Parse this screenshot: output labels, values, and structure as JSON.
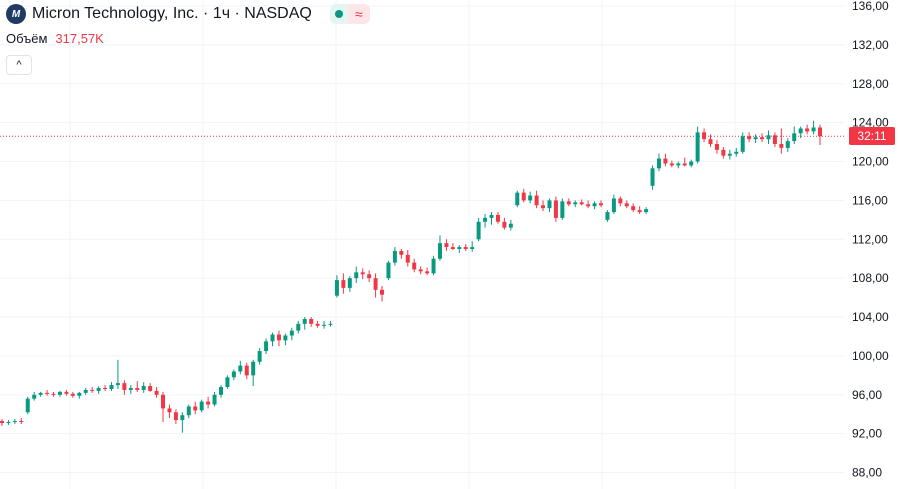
{
  "header": {
    "title": "Micron Technology, Inc. · 1ч · NASDAQ",
    "logo_text": "M"
  },
  "volume": {
    "label": "Объём",
    "value": "317,57K"
  },
  "price_badge": "32:11",
  "colors": {
    "up": "#089981",
    "down": "#f23645",
    "grid": "#f0f3fa",
    "axis_text": "#131722"
  },
  "icons": [
    "logo-icon",
    "status-dot-icon",
    "wave-icon",
    "chevron-up-icon"
  ],
  "chart_data": {
    "type": "candlestick",
    "ylim": [
      86,
      137
    ],
    "y_ticks": [
      "136,00",
      "132,00",
      "128,00",
      "124,00",
      "120,00",
      "116,00",
      "112,00",
      "108,00",
      "104,00",
      "100,00",
      "96,00",
      "92,00",
      "88,00"
    ],
    "last_price": 122.6,
    "candles": [
      [
        93.3,
        93.5,
        92.8,
        93.1
      ],
      [
        93.1,
        93.4,
        92.9,
        93.2
      ],
      [
        93.2,
        93.5,
        93.0,
        93.3
      ],
      [
        93.3,
        93.6,
        93.0,
        93.2
      ],
      [
        94.2,
        95.8,
        94.0,
        95.6
      ],
      [
        95.6,
        96.3,
        95.4,
        96.0
      ],
      [
        96.0,
        96.3,
        95.8,
        96.2
      ],
      [
        96.2,
        96.5,
        95.9,
        96.1
      ],
      [
        96.1,
        96.3,
        95.8,
        96.0
      ],
      [
        96.0,
        96.4,
        95.8,
        96.3
      ],
      [
        96.3,
        96.5,
        95.9,
        96.1
      ],
      [
        96.1,
        96.3,
        95.7,
        95.9
      ],
      [
        95.9,
        96.3,
        95.6,
        96.2
      ],
      [
        96.2,
        96.7,
        96.0,
        96.5
      ],
      [
        96.5,
        96.8,
        96.2,
        96.4
      ],
      [
        96.4,
        96.9,
        96.1,
        96.7
      ],
      [
        96.7,
        97.0,
        96.4,
        96.6
      ],
      [
        96.6,
        97.3,
        96.4,
        97.0
      ],
      [
        97.0,
        99.6,
        96.6,
        97.2
      ],
      [
        97.2,
        97.5,
        96.0,
        96.5
      ],
      [
        96.5,
        97.0,
        96.1,
        96.7
      ],
      [
        96.7,
        97.4,
        96.3,
        96.5
      ],
      [
        96.5,
        97.3,
        96.2,
        96.9
      ],
      [
        96.9,
        97.2,
        96.3,
        96.4
      ],
      [
        96.4,
        96.8,
        95.7,
        96.0
      ],
      [
        96.0,
        96.3,
        93.2,
        94.6
      ],
      [
        94.6,
        95.0,
        93.6,
        94.2
      ],
      [
        94.2,
        94.5,
        93.0,
        93.4
      ],
      [
        93.4,
        94.2,
        92.1,
        93.9
      ],
      [
        93.9,
        95.0,
        93.6,
        94.8
      ],
      [
        94.8,
        95.3,
        94.0,
        94.4
      ],
      [
        94.4,
        95.5,
        94.2,
        95.3
      ],
      [
        95.3,
        95.8,
        94.6,
        95.0
      ],
      [
        95.0,
        96.3,
        94.8,
        96.0
      ],
      [
        96.0,
        97.0,
        95.7,
        96.8
      ],
      [
        96.8,
        98.0,
        96.6,
        97.8
      ],
      [
        97.8,
        98.6,
        97.5,
        98.4
      ],
      [
        98.4,
        99.5,
        98.1,
        99.0
      ],
      [
        99.0,
        99.3,
        97.6,
        98.0
      ],
      [
        98.0,
        99.6,
        96.9,
        99.4
      ],
      [
        99.4,
        100.8,
        99.1,
        100.5
      ],
      [
        100.5,
        101.8,
        100.2,
        101.5
      ],
      [
        101.5,
        102.4,
        101.0,
        102.2
      ],
      [
        102.2,
        102.6,
        101.0,
        101.6
      ],
      [
        101.6,
        102.3,
        101.1,
        102.1
      ],
      [
        102.1,
        102.9,
        101.6,
        102.6
      ],
      [
        102.6,
        103.6,
        102.3,
        103.3
      ],
      [
        103.3,
        104.0,
        102.7,
        103.8
      ],
      [
        103.8,
        104.0,
        103.0,
        103.3
      ],
      [
        103.3,
        103.6,
        102.9,
        103.1
      ],
      [
        103.1,
        103.6,
        102.8,
        103.2
      ],
      [
        103.2,
        103.6,
        103.0,
        103.3
      ],
      [
        106.2,
        108.3,
        106.0,
        107.8
      ],
      [
        107.8,
        108.5,
        106.4,
        107.0
      ],
      [
        107.0,
        108.2,
        106.6,
        108.0
      ],
      [
        108.0,
        109.2,
        107.5,
        108.6
      ],
      [
        108.6,
        109.0,
        107.9,
        108.4
      ],
      [
        108.4,
        108.8,
        107.6,
        108.0
      ],
      [
        108.0,
        108.5,
        106.0,
        106.8
      ],
      [
        106.8,
        107.2,
        105.6,
        106.3
      ],
      [
        108.0,
        109.8,
        107.8,
        109.6
      ],
      [
        109.6,
        111.2,
        109.3,
        110.8
      ],
      [
        110.8,
        111.0,
        110.0,
        110.4
      ],
      [
        110.4,
        110.9,
        109.2,
        109.6
      ],
      [
        109.6,
        110.0,
        108.6,
        108.9
      ],
      [
        108.9,
        109.2,
        108.4,
        108.7
      ],
      [
        108.7,
        109.1,
        108.3,
        108.5
      ],
      [
        108.5,
        110.3,
        108.3,
        110.0
      ],
      [
        110.0,
        112.4,
        109.8,
        111.6
      ],
      [
        111.6,
        112.0,
        110.8,
        111.2
      ],
      [
        111.2,
        111.6,
        110.9,
        111.0
      ],
      [
        111.0,
        111.4,
        110.6,
        111.2
      ],
      [
        111.2,
        111.5,
        110.8,
        111.0
      ],
      [
        111.0,
        111.8,
        110.7,
        111.2
      ],
      [
        112.0,
        114.2,
        111.8,
        113.8
      ],
      [
        113.8,
        114.6,
        113.2,
        114.2
      ],
      [
        114.2,
        114.8,
        113.5,
        114.5
      ],
      [
        114.5,
        114.8,
        113.6,
        113.8
      ],
      [
        113.8,
        114.2,
        113.0,
        113.2
      ],
      [
        113.2,
        114.0,
        112.9,
        113.6
      ],
      [
        115.5,
        117.0,
        115.3,
        116.8
      ],
      [
        116.8,
        117.2,
        115.8,
        116.0
      ],
      [
        116.0,
        116.9,
        115.7,
        116.5
      ],
      [
        116.5,
        117.0,
        115.2,
        115.5
      ],
      [
        115.5,
        116.0,
        114.9,
        115.2
      ],
      [
        115.2,
        116.2,
        114.8,
        116.0
      ],
      [
        116.0,
        116.4,
        113.8,
        114.2
      ],
      [
        114.2,
        116.2,
        114.0,
        115.9
      ],
      [
        115.9,
        116.2,
        115.4,
        115.6
      ],
      [
        115.6,
        116.0,
        115.3,
        115.8
      ],
      [
        115.8,
        116.1,
        115.5,
        115.6
      ],
      [
        115.6,
        116.0,
        115.2,
        115.4
      ],
      [
        115.4,
        115.9,
        115.1,
        115.7
      ],
      [
        115.7,
        116.0,
        115.3,
        115.5
      ],
      [
        114.0,
        115.0,
        113.8,
        114.8
      ],
      [
        114.8,
        116.6,
        114.6,
        116.2
      ],
      [
        116.2,
        116.4,
        115.4,
        115.7
      ],
      [
        115.7,
        116.0,
        115.2,
        115.4
      ],
      [
        115.4,
        115.7,
        114.8,
        115.0
      ],
      [
        115.0,
        115.4,
        114.6,
        114.8
      ],
      [
        114.8,
        115.3,
        114.6,
        115.1
      ],
      [
        117.5,
        119.6,
        117.1,
        119.3
      ],
      [
        119.3,
        120.8,
        119.0,
        120.3
      ],
      [
        120.3,
        120.8,
        119.5,
        119.8
      ],
      [
        119.8,
        120.1,
        119.4,
        119.6
      ],
      [
        119.6,
        120.0,
        119.3,
        119.8
      ],
      [
        119.8,
        120.4,
        119.5,
        119.6
      ],
      [
        119.6,
        120.2,
        119.4,
        120.0
      ],
      [
        120.0,
        123.6,
        119.8,
        123.0
      ],
      [
        123.0,
        123.4,
        122.0,
        122.3
      ],
      [
        122.3,
        122.8,
        121.5,
        121.8
      ],
      [
        121.8,
        122.2,
        120.8,
        121.2
      ],
      [
        121.2,
        121.5,
        120.3,
        120.6
      ],
      [
        120.6,
        121.2,
        120.2,
        120.8
      ],
      [
        120.8,
        121.4,
        120.5,
        121.0
      ],
      [
        121.0,
        123.0,
        120.8,
        122.6
      ],
      [
        122.6,
        123.0,
        122.0,
        122.3
      ],
      [
        122.3,
        122.8,
        121.9,
        122.5
      ],
      [
        122.5,
        122.9,
        122.0,
        122.3
      ],
      [
        122.3,
        123.2,
        121.8,
        122.7
      ],
      [
        122.7,
        123.0,
        121.5,
        121.8
      ],
      [
        121.8,
        123.4,
        120.8,
        121.4
      ],
      [
        121.4,
        122.4,
        121.0,
        122.1
      ],
      [
        122.1,
        123.6,
        121.8,
        122.9
      ],
      [
        122.9,
        123.6,
        122.4,
        123.4
      ],
      [
        123.4,
        123.8,
        122.8,
        123.1
      ],
      [
        123.1,
        124.2,
        122.8,
        123.5
      ],
      [
        123.5,
        123.8,
        121.7,
        122.6
      ]
    ]
  }
}
